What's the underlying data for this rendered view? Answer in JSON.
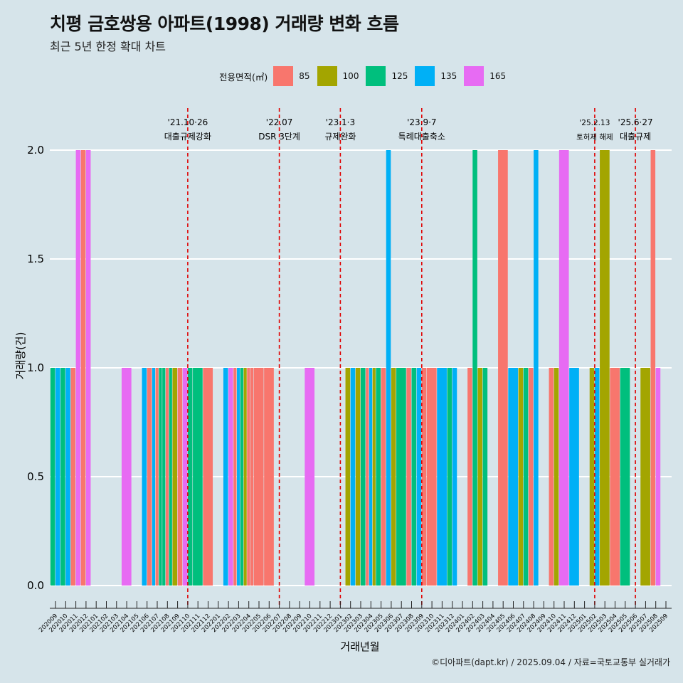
{
  "title": "치평 금호쌍용 아파트(1998) 거래량 변화 흐름",
  "subtitle": "최근 5년 한정 확대 차트",
  "caption": "©디아파트(dapt.kr) / 2025.09.04 / 자료=국토교통부 실거래가",
  "legend": {
    "title": "전용면적(㎡)",
    "items": [
      {
        "label": "85",
        "color": "#F8766D"
      },
      {
        "label": "100",
        "color": "#A3A500"
      },
      {
        "label": "125",
        "color": "#00BF7D"
      },
      {
        "label": "135",
        "color": "#00B0F6"
      },
      {
        "label": "165",
        "color": "#E76BF3"
      }
    ]
  },
  "chart_data": {
    "type": "bar",
    "xlabel": "거래년월",
    "ylabel": "거래량(건)",
    "ylim": [
      0,
      2.2
    ],
    "yticks": [
      0.0,
      0.5,
      1.0,
      1.5,
      2.0
    ],
    "ytick_labels": [
      "0.0",
      "0.5",
      "1.0",
      "1.5",
      "2.0"
    ],
    "categories": [
      "202009",
      "202010",
      "202011",
      "202012",
      "202101",
      "202102",
      "202103",
      "202104",
      "202105",
      "202106",
      "202107",
      "202108",
      "202109",
      "202110",
      "202111",
      "202112",
      "202201",
      "202202",
      "202203",
      "202204",
      "202205",
      "202206",
      "202207",
      "202208",
      "202209",
      "202210",
      "202211",
      "202212",
      "202301",
      "202302",
      "202303",
      "202304",
      "202305",
      "202306",
      "202307",
      "202308",
      "202309",
      "202310",
      "202311",
      "202312",
      "202401",
      "202402",
      "202403",
      "202404",
      "202405",
      "202406",
      "202407",
      "202408",
      "202409",
      "202410",
      "202411",
      "202412",
      "202501",
      "202502",
      "202503",
      "202504",
      "202505",
      "202506",
      "202507",
      "202508",
      "202509"
    ],
    "bars": [
      {
        "month": "202009",
        "parts": [
          {
            "size": "125",
            "count": 1
          },
          {
            "size": "135",
            "count": 1
          }
        ]
      },
      {
        "month": "202010",
        "parts": [
          {
            "size": "125",
            "count": 1
          },
          {
            "size": "135",
            "count": 1
          }
        ]
      },
      {
        "month": "202011",
        "parts": [
          {
            "size": "85",
            "count": 1
          },
          {
            "size": "165",
            "count": 2
          }
        ]
      },
      {
        "month": "202012",
        "parts": [
          {
            "size": "85",
            "count": 2
          },
          {
            "size": "165",
            "count": 2
          }
        ]
      },
      {
        "month": "202104",
        "parts": [
          {
            "size": "165",
            "count": 1
          }
        ]
      },
      {
        "month": "202106",
        "parts": [
          {
            "size": "135",
            "count": 1
          },
          {
            "size": "85",
            "count": 1
          }
        ]
      },
      {
        "month": "202107",
        "parts": [
          {
            "size": "135",
            "count": 1
          },
          {
            "size": "85",
            "count": 1
          },
          {
            "size": "125",
            "count": 1
          }
        ]
      },
      {
        "month": "202108",
        "parts": [
          {
            "size": "125",
            "count": 1
          },
          {
            "size": "85",
            "count": 1
          },
          {
            "size": "125",
            "count": 1
          }
        ]
      },
      {
        "month": "202109",
        "parts": [
          {
            "size": "100",
            "count": 1
          },
          {
            "size": "85",
            "count": 1
          }
        ]
      },
      {
        "month": "202110",
        "parts": [
          {
            "size": "165",
            "count": 1
          },
          {
            "size": "125",
            "count": 1
          }
        ]
      },
      {
        "month": "202111",
        "parts": [
          {
            "size": "125",
            "count": 1
          }
        ]
      },
      {
        "month": "202112",
        "parts": [
          {
            "size": "85",
            "count": 1
          }
        ]
      },
      {
        "month": "202202",
        "parts": [
          {
            "size": "135",
            "count": 1
          },
          {
            "size": "165",
            "count": 1
          }
        ]
      },
      {
        "month": "202203",
        "parts": [
          {
            "size": "85",
            "count": 1
          },
          {
            "size": "135",
            "count": 1
          },
          {
            "size": "125",
            "count": 1
          }
        ]
      },
      {
        "month": "202204",
        "parts": [
          {
            "size": "100",
            "count": 1
          },
          {
            "size": "85",
            "count": 1
          },
          {
            "size": "85",
            "count": 1
          }
        ]
      },
      {
        "month": "202205",
        "parts": [
          {
            "size": "85",
            "count": 1
          }
        ]
      },
      {
        "month": "202206",
        "parts": [
          {
            "size": "85",
            "count": 1
          }
        ]
      },
      {
        "month": "202210",
        "parts": [
          {
            "size": "165",
            "count": 1
          }
        ]
      },
      {
        "month": "202302",
        "parts": [
          {
            "size": "100",
            "count": 1
          },
          {
            "size": "135",
            "count": 1
          }
        ]
      },
      {
        "month": "202303",
        "parts": [
          {
            "size": "100",
            "count": 1
          },
          {
            "size": "125",
            "count": 1
          }
        ]
      },
      {
        "month": "202304",
        "parts": [
          {
            "size": "85",
            "count": 1
          },
          {
            "size": "135",
            "count": 1
          },
          {
            "size": "100",
            "count": 1
          }
        ]
      },
      {
        "month": "202305",
        "parts": [
          {
            "size": "125",
            "count": 1
          },
          {
            "size": "85",
            "count": 1
          }
        ]
      },
      {
        "month": "202306",
        "parts": [
          {
            "size": "135",
            "count": 2
          },
          {
            "size": "100",
            "count": 1
          }
        ]
      },
      {
        "month": "202307",
        "parts": [
          {
            "size": "125",
            "count": 1
          }
        ]
      },
      {
        "month": "202308",
        "parts": [
          {
            "size": "85",
            "count": 1
          },
          {
            "size": "125",
            "count": 1
          }
        ]
      },
      {
        "month": "202309",
        "parts": [
          {
            "size": "135",
            "count": 1
          },
          {
            "size": "85",
            "count": 1
          }
        ]
      },
      {
        "month": "202310",
        "parts": [
          {
            "size": "85",
            "count": 1
          }
        ]
      },
      {
        "month": "202311",
        "parts": [
          {
            "size": "135",
            "count": 1
          }
        ]
      },
      {
        "month": "202312",
        "parts": [
          {
            "size": "125",
            "count": 1
          },
          {
            "size": "135",
            "count": 1
          }
        ]
      },
      {
        "month": "202402",
        "parts": [
          {
            "size": "85",
            "count": 1
          },
          {
            "size": "125",
            "count": 2
          }
        ]
      },
      {
        "month": "202403",
        "parts": [
          {
            "size": "100",
            "count": 1
          },
          {
            "size": "125",
            "count": 1
          }
        ]
      },
      {
        "month": "202405",
        "parts": [
          {
            "size": "85",
            "count": 2
          }
        ]
      },
      {
        "month": "202406",
        "parts": [
          {
            "size": "135",
            "count": 1
          }
        ]
      },
      {
        "month": "202407",
        "parts": [
          {
            "size": "100",
            "count": 1
          },
          {
            "size": "125",
            "count": 1
          }
        ]
      },
      {
        "month": "202408",
        "parts": [
          {
            "size": "85",
            "count": 1
          },
          {
            "size": "135",
            "count": 2
          }
        ]
      },
      {
        "month": "202410",
        "parts": [
          {
            "size": "85",
            "count": 1
          },
          {
            "size": "100",
            "count": 1
          }
        ]
      },
      {
        "month": "202411",
        "parts": [
          {
            "size": "165",
            "count": 2
          }
        ]
      },
      {
        "month": "202412",
        "parts": [
          {
            "size": "135",
            "count": 1
          }
        ]
      },
      {
        "month": "202502",
        "parts": [
          {
            "size": "100",
            "count": 1
          },
          {
            "size": "135",
            "count": 1
          }
        ]
      },
      {
        "month": "202503",
        "parts": [
          {
            "size": "100",
            "count": 2
          }
        ]
      },
      {
        "month": "202504",
        "parts": [
          {
            "size": "85",
            "count": 1
          }
        ]
      },
      {
        "month": "202505",
        "parts": [
          {
            "size": "125",
            "count": 1
          }
        ]
      },
      {
        "month": "202507",
        "parts": [
          {
            "size": "100",
            "count": 1
          }
        ]
      },
      {
        "month": "202508",
        "parts": [
          {
            "size": "85",
            "count": 2
          },
          {
            "size": "165",
            "count": 1
          }
        ]
      }
    ],
    "events": [
      {
        "month": "202110",
        "date_label": "'21.10·26",
        "label": "대출규제강화"
      },
      {
        "month": "202207",
        "date_label": "'22.07",
        "label": "DSR 3단계"
      },
      {
        "month": "202301",
        "date_label": "'23.1·3",
        "label": "규제완화"
      },
      {
        "month": "202309",
        "date_label": "'23.9·7",
        "label": "특례대출축소"
      },
      {
        "month": "202502",
        "date_label": "'25.2.13",
        "label": "토허제 해제"
      },
      {
        "month": "202506",
        "date_label": "'25.6·27",
        "label": "대출규제"
      }
    ],
    "grid": true,
    "legend_position": "top"
  }
}
